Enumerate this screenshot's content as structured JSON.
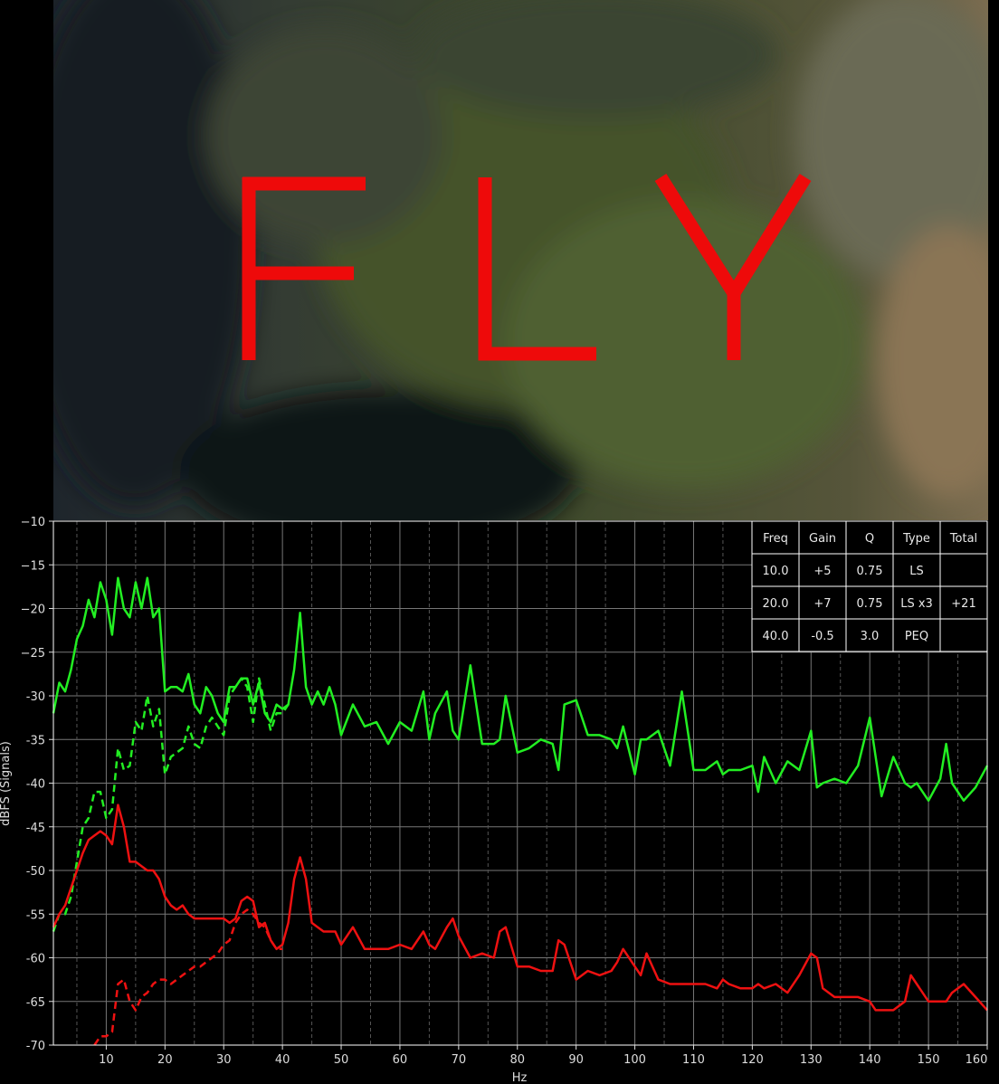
{
  "overlay_text": "FLY",
  "chart_data": {
    "type": "line",
    "xlabel": "Hz",
    "ylabel": "dBFS (Signals)",
    "xlim": [
      1,
      160
    ],
    "ylim": [
      -70,
      -10
    ],
    "xticks": [
      10,
      20,
      30,
      40,
      50,
      60,
      70,
      80,
      90,
      100,
      110,
      120,
      130,
      140,
      150,
      160
    ],
    "yticks": [
      -10,
      -15,
      -20,
      -25,
      -30,
      -35,
      -40,
      -45,
      -50,
      -55,
      -60,
      -65,
      -70
    ],
    "ytick_labels": [
      "−10",
      "−15",
      "−20",
      "−25",
      "-30",
      "-35",
      "-40",
      "-45",
      "-50",
      "-55",
      "-60",
      "-65",
      "-70"
    ],
    "grid": true,
    "colors": {
      "green": "#22ee22",
      "red": "#ee1111",
      "grid": "#777777"
    },
    "series": [
      {
        "color": "green",
        "dash": false,
        "x": [
          1,
          2,
          3,
          4,
          5,
          6,
          7,
          8,
          9,
          10,
          11,
          12,
          13,
          14,
          15,
          16,
          17,
          18,
          19,
          20,
          21,
          22,
          23,
          24,
          25,
          26,
          27,
          28,
          29,
          30,
          31,
          32,
          33,
          34,
          35,
          36,
          37,
          38,
          39,
          40,
          41,
          42,
          43,
          44,
          45,
          46,
          47,
          48,
          49,
          50,
          52,
          54,
          56,
          58,
          60,
          62,
          64,
          65,
          66,
          68,
          69,
          70,
          72,
          74,
          76,
          77,
          78,
          80,
          82,
          84,
          86,
          87,
          88,
          90,
          92,
          94,
          96,
          97,
          98,
          100,
          101,
          102,
          104,
          106,
          108,
          110,
          112,
          114,
          115,
          116,
          118,
          120,
          121,
          122,
          124,
          126,
          128,
          130,
          131,
          132,
          134,
          136,
          138,
          140,
          141,
          142,
          144,
          146,
          147,
          148,
          150,
          152,
          153,
          154,
          156,
          158,
          160
        ],
        "y": [
          -32,
          -28.5,
          -29.5,
          -27,
          -23.5,
          -22,
          -19,
          -21,
          -17,
          -19,
          -23,
          -16.5,
          -20,
          -21,
          -17,
          -20,
          -16.5,
          -21,
          -20,
          -29.5,
          -29,
          -29,
          -29.5,
          -27.5,
          -31,
          -32,
          -29,
          -30,
          -32,
          -33,
          -29,
          -29,
          -28,
          -28,
          -31,
          -28.5,
          -32,
          -33,
          -31,
          -31.5,
          -31,
          -27,
          -20.5,
          -29,
          -31,
          -29.5,
          -31,
          -29,
          -31,
          -34.5,
          -31,
          -33.5,
          -33,
          -35.5,
          -33,
          -34,
          -29.5,
          -35,
          -32,
          -29.5,
          -34,
          -35,
          -26.5,
          -35.5,
          -35.5,
          -35,
          -30,
          -36.5,
          -36,
          -35,
          -35.5,
          -38.5,
          -31,
          -30.5,
          -34.5,
          -34.5,
          -35,
          -36,
          -33.5,
          -39,
          -35,
          -35,
          -34,
          -38,
          -29.5,
          -38.5,
          -38.5,
          -37.5,
          -39,
          -38.5,
          -38.5,
          -38,
          -41,
          -37,
          -40,
          -37.5,
          -38.5,
          -34,
          -40.5,
          -40,
          -39.5,
          -40,
          -38,
          -32.5,
          -37,
          -41.5,
          -37,
          -40,
          -40.5,
          -40,
          -42,
          -39.5,
          -35.5,
          -40,
          -42,
          -40.5,
          -38
        ]
      },
      {
        "color": "green",
        "dash": true,
        "x": [
          1,
          2,
          3,
          4,
          5,
          6,
          7,
          8,
          9,
          10,
          11,
          12,
          13,
          14,
          15,
          16,
          17,
          18,
          19,
          20,
          21,
          22,
          23,
          24,
          25,
          26,
          27,
          28,
          29,
          30,
          31,
          32,
          33,
          34,
          35,
          36,
          37,
          38,
          39,
          40,
          41
        ],
        "y": [
          -57,
          -55,
          -55,
          -53,
          -49,
          -45,
          -44,
          -41,
          -41,
          -44,
          -43,
          -36,
          -38.5,
          -38,
          -33,
          -34,
          -30,
          -33.5,
          -31.5,
          -39,
          -37,
          -36.5,
          -36,
          -33.5,
          -35.5,
          -36,
          -33.5,
          -32.5,
          -33.5,
          -34.5,
          -30,
          -29,
          -28,
          -29,
          -33,
          -28,
          -31,
          -34,
          -32,
          -32,
          -31
        ]
      },
      {
        "color": "red",
        "dash": false,
        "x": [
          1,
          2,
          3,
          4,
          5,
          6,
          7,
          8,
          9,
          10,
          11,
          12,
          13,
          14,
          15,
          16,
          17,
          18,
          19,
          20,
          21,
          22,
          23,
          24,
          25,
          26,
          27,
          28,
          29,
          30,
          31,
          32,
          33,
          34,
          35,
          36,
          37,
          38,
          39,
          40,
          41,
          42,
          43,
          44,
          45,
          46,
          47,
          48,
          49,
          50,
          52,
          54,
          56,
          58,
          60,
          62,
          64,
          65,
          66,
          68,
          69,
          70,
          72,
          74,
          76,
          77,
          78,
          80,
          82,
          84,
          86,
          87,
          88,
          90,
          92,
          94,
          96,
          97,
          98,
          100,
          101,
          102,
          104,
          106,
          108,
          110,
          112,
          114,
          115,
          116,
          118,
          120,
          121,
          122,
          124,
          126,
          128,
          130,
          131,
          132,
          134,
          136,
          138,
          140,
          141,
          142,
          144,
          146,
          147,
          148,
          150,
          152,
          153,
          154,
          156,
          158,
          160
        ],
        "y": [
          -56.5,
          -55,
          -54,
          -52,
          -50,
          -48,
          -46.5,
          -46,
          -45.5,
          -46,
          -47,
          -42.5,
          -45,
          -49,
          -49,
          -49.5,
          -50,
          -50,
          -51,
          -53,
          -54,
          -54.5,
          -54,
          -55,
          -55.5,
          -55.5,
          -55.5,
          -55.5,
          -55.5,
          -55.5,
          -56,
          -55.5,
          -53.5,
          -53,
          -53.5,
          -56.5,
          -56,
          -58,
          -59,
          -58.5,
          -56,
          -51,
          -48.5,
          -51,
          -56,
          -56.5,
          -57,
          -57,
          -57,
          -58.5,
          -56.5,
          -59,
          -59,
          -59,
          -58.5,
          -59,
          -57,
          -58.5,
          -59,
          -56.5,
          -55.5,
          -57.5,
          -60,
          -59.5,
          -60,
          -57,
          -56.5,
          -61,
          -61,
          -61.5,
          -61.5,
          -58,
          -58.5,
          -62.5,
          -61.5,
          -62,
          -61.5,
          -60.5,
          -59,
          -61,
          -62,
          -59.5,
          -62.5,
          -63,
          -63,
          -63,
          -63,
          -63.5,
          -62.5,
          -63,
          -63.5,
          -63.5,
          -63,
          -63.5,
          -63,
          -64,
          -62,
          -59.5,
          -60,
          -63.5,
          -64.5,
          -64.5,
          -64.5,
          -65,
          -66,
          -66,
          -66,
          -65,
          -62,
          -63,
          -65,
          -65,
          -65,
          -64,
          -63,
          -64.5,
          -66
        ]
      },
      {
        "color": "red",
        "dash": true,
        "x": [
          8,
          9,
          10,
          11,
          12,
          13,
          14,
          15,
          16,
          17,
          18,
          19,
          20,
          21,
          22,
          23,
          24,
          25,
          26,
          27,
          28,
          29,
          30,
          31,
          32,
          33,
          34,
          35,
          36,
          37,
          38,
          39,
          40
        ],
        "y": [
          -70,
          -69,
          -69,
          -68.5,
          -63,
          -62.5,
          -65,
          -66,
          -64.5,
          -64,
          -63,
          -62.5,
          -62.5,
          -63,
          -62.5,
          -62,
          -61.5,
          -61,
          -61,
          -60.5,
          -60,
          -59.5,
          -58.5,
          -58,
          -56,
          -55,
          -54.5,
          -55,
          -56,
          -56.5,
          -58,
          -59,
          -59
        ]
      }
    ],
    "table": {
      "headers": [
        "Freq",
        "Gain",
        "Q",
        "Type",
        "Total"
      ],
      "rows": [
        [
          "10.0",
          "+5",
          "0.75",
          "LS",
          ""
        ],
        [
          "20.0",
          "+7",
          "0.75",
          "LS x3",
          "+21"
        ],
        [
          "40.0",
          "-0.5",
          "3.0",
          "PEQ",
          ""
        ]
      ]
    }
  }
}
